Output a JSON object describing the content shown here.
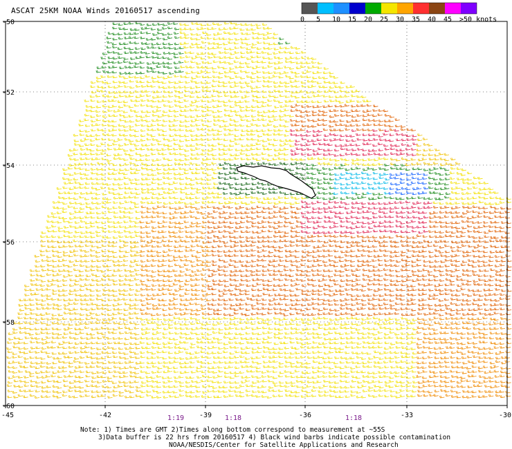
{
  "title": "ASCAT 25KM NOAA Winds 20160517 ascending",
  "colorbar": {
    "labels": [
      "0",
      "5",
      "10",
      "15",
      "20",
      "25",
      "30",
      "35",
      "40",
      "45",
      ">50 knots"
    ],
    "colors": [
      "#555555",
      "#00bfff",
      "#1e90ff",
      "#0000cd",
      "#00aa00",
      "#f5e600",
      "#ffa500",
      "#ff3030",
      "#8b4513",
      "#ff00ff",
      "#7f00ff"
    ]
  },
  "axes": {
    "lat_labels": [
      "-50",
      "-52",
      "-54",
      "-56",
      "-58",
      "-60"
    ],
    "lon_labels": [
      "-45",
      "-42",
      "-39",
      "-36",
      "-33",
      "-30"
    ]
  },
  "time_labels": [
    "1:19",
    "1:18",
    "1:18"
  ],
  "notes": {
    "line1": "Note: 1) Times are GMT 2)Times along bottom correspond to measurement at ~55S",
    "line2": "3)Data buffer is 22 hrs from 20160517 4) Black wind barbs indicate possible contamination",
    "line3": "NOAA/NESDIS/Center for Satellite Applications and Research"
  },
  "wind_colors": {
    "green": "#1a8a1a",
    "dark_green": "#0b5d0b",
    "yellow": "#f3e000",
    "gold": "#f0c000",
    "orange": "#f08a00",
    "dark_orange": "#e06000",
    "red": "#e02050",
    "blue": "#1060ff",
    "cyan": "#00b8e8",
    "black": "#000000"
  }
}
